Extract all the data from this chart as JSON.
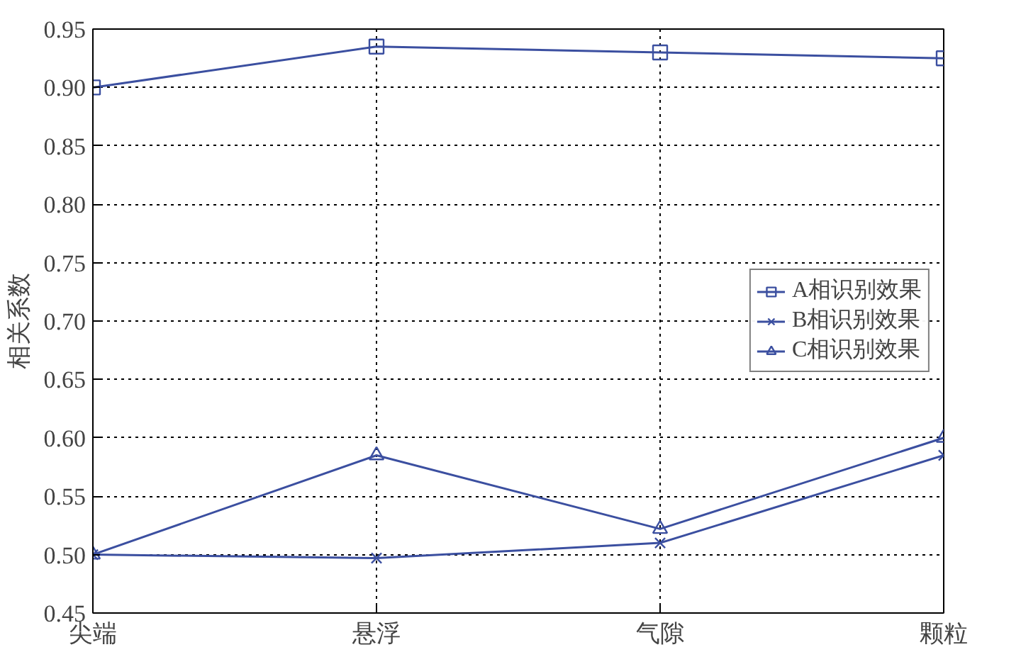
{
  "chart_data": {
    "type": "line",
    "ylabel": "相关系数",
    "categories": [
      "尖端",
      "悬浮",
      "气隙",
      "颗粒"
    ],
    "series": [
      {
        "name": "A相识别效果",
        "color": "#3b4fa0",
        "marker": "square",
        "values": [
          0.9,
          0.935,
          0.93,
          0.925
        ]
      },
      {
        "name": "B相识别效果",
        "color": "#3b4fa0",
        "marker": "cross",
        "values": [
          0.5,
          0.497,
          0.51,
          0.585
        ]
      },
      {
        "name": "C相识别效果",
        "color": "#3b4fa0",
        "marker": "triangle",
        "values": [
          0.5,
          0.585,
          0.522,
          0.6
        ]
      }
    ],
    "ylim": [
      0.45,
      0.95
    ],
    "yticks": [
      0.45,
      {
        "value": 0.5,
        "label": "0.50"
      },
      0.55,
      {
        "value": 0.6,
        "label": "0.60"
      },
      0.65,
      {
        "value": 0.7,
        "label": "0.70"
      },
      0.75,
      {
        "value": 0.8,
        "label": "0.80"
      },
      0.85,
      {
        "value": 0.9,
        "label": "0.90"
      },
      0.95
    ],
    "grid": true,
    "legend": "right"
  }
}
